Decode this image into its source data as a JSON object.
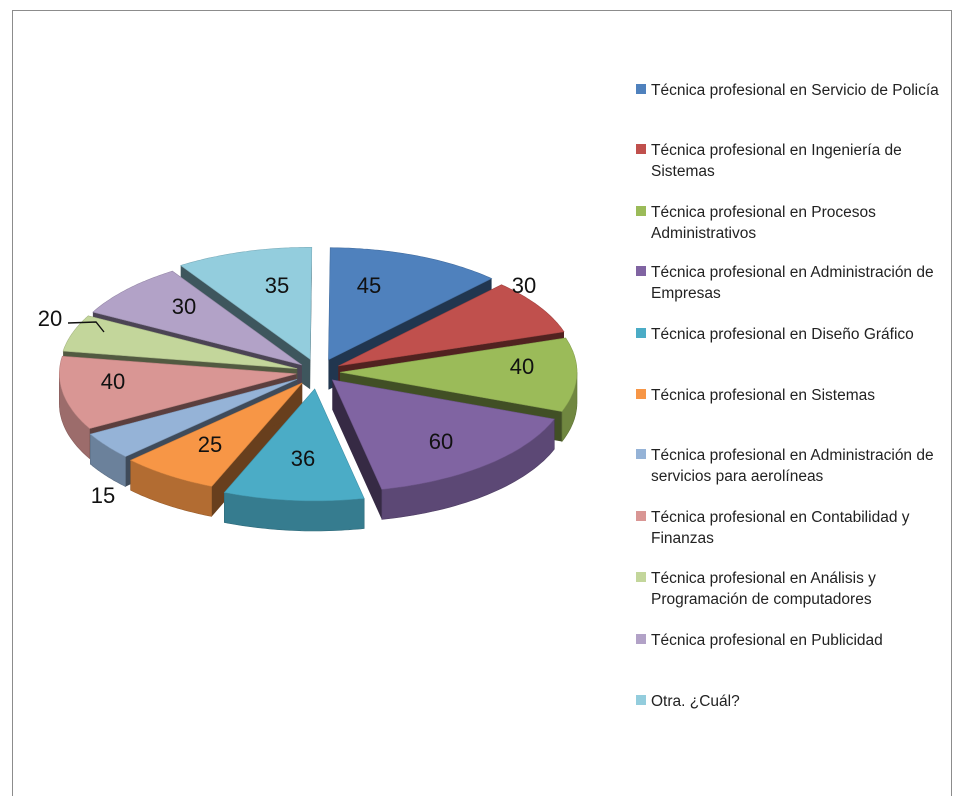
{
  "chart_data": {
    "type": "pie",
    "variant": "3d-exploded",
    "title": "",
    "slices": [
      {
        "label": "Técnica profesional en Servicio de Policía",
        "value": 45,
        "color": "#4f81bd"
      },
      {
        "label": "Técnica profesional en Ingeniería de Sistemas",
        "value": 30,
        "color": "#c0504d"
      },
      {
        "label": "Técnica profesional en Procesos Administrativos",
        "value": 40,
        "color": "#9bbb59"
      },
      {
        "label": "Técnica profesional en Administración de Empresas",
        "value": 60,
        "color": "#8064a2"
      },
      {
        "label": "Técnica profesional en Diseño Gráfico",
        "value": 36,
        "color": "#4bacc6"
      },
      {
        "label": "Técnica profesional en Sistemas",
        "value": 25,
        "color": "#f79646"
      },
      {
        "label": "Técnica profesional en Administración de servicios para aerolíneas",
        "value": 15,
        "color": "#95b3d7"
      },
      {
        "label": "Técnica profesional en Contabilidad y Finanzas",
        "value": 40,
        "color": "#d99694"
      },
      {
        "label": "Técnica profesional en Análisis y Programación de computadores",
        "value": 20,
        "color": "#c3d69b"
      },
      {
        "label": "Técnica profesional en Publicidad",
        "value": 30,
        "color": "#b2a2c7"
      },
      {
        "label": "Otra. ¿Cuál?",
        "value": 35,
        "color": "#93cddd"
      }
    ],
    "legend_position": "right",
    "data_labels": true
  }
}
